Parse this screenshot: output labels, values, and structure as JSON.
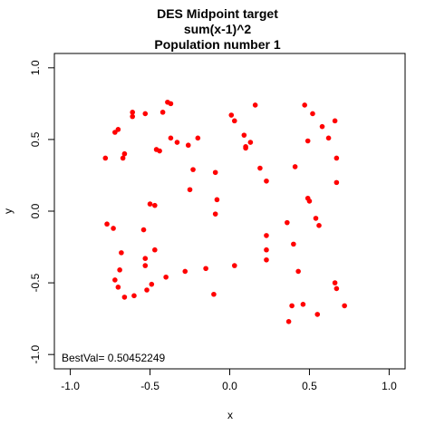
{
  "chart_data": {
    "type": "scatter",
    "title_lines": [
      "DES Midpoint target",
      "sum(x-1)^2",
      "Population number 1"
    ],
    "xlabel": "x",
    "ylabel": "y",
    "xlim": [
      -1.1,
      1.1
    ],
    "ylim": [
      -1.1,
      1.1
    ],
    "xticks": [
      -1.0,
      -0.5,
      0.0,
      0.5,
      1.0
    ],
    "yticks": [
      -1.0,
      -0.5,
      0.0,
      0.5,
      1.0
    ],
    "xtick_labels": [
      "-1.0",
      "-0.5",
      "0.0",
      "0.5",
      "1.0"
    ],
    "ytick_labels": [
      "-1.0",
      "-0.5",
      "0.0",
      "0.5",
      "1.0"
    ],
    "grid": false,
    "annotation": "BestVal= 0.50452249",
    "annotation_color": "#0000ff",
    "point_color": "#ff0000",
    "points": [
      [
        -0.78,
        0.37
      ],
      [
        -0.72,
        0.55
      ],
      [
        -0.7,
        0.57
      ],
      [
        -0.67,
        0.37
      ],
      [
        -0.66,
        0.4
      ],
      [
        -0.61,
        0.66
      ],
      [
        -0.61,
        0.69
      ],
      [
        -0.53,
        0.68
      ],
      [
        -0.46,
        0.43
      ],
      [
        -0.44,
        0.42
      ],
      [
        -0.42,
        0.69
      ],
      [
        -0.39,
        0.76
      ],
      [
        -0.37,
        0.75
      ],
      [
        -0.37,
        0.51
      ],
      [
        -0.33,
        0.48
      ],
      [
        -0.26,
        0.46
      ],
      [
        -0.2,
        0.51
      ],
      [
        -0.23,
        0.29
      ],
      [
        -0.25,
        0.15
      ],
      [
        -0.09,
        0.27
      ],
      [
        -0.08,
        0.08
      ],
      [
        -0.09,
        -0.02
      ],
      [
        0.01,
        0.67
      ],
      [
        0.03,
        0.63
      ],
      [
        0.09,
        0.53
      ],
      [
        0.1,
        0.45
      ],
      [
        0.1,
        0.44
      ],
      [
        0.13,
        0.48
      ],
      [
        0.16,
        0.74
      ],
      [
        0.19,
        0.3
      ],
      [
        0.23,
        0.21
      ],
      [
        -0.77,
        -0.09
      ],
      [
        -0.73,
        -0.12
      ],
      [
        -0.68,
        -0.29
      ],
      [
        -0.69,
        -0.41
      ],
      [
        -0.72,
        -0.48
      ],
      [
        -0.7,
        -0.53
      ],
      [
        -0.66,
        -0.6
      ],
      [
        -0.6,
        -0.59
      ],
      [
        -0.53,
        -0.33
      ],
      [
        -0.53,
        -0.38
      ],
      [
        -0.54,
        -0.13
      ],
      [
        -0.5,
        0.05
      ],
      [
        -0.47,
        0.04
      ],
      [
        -0.47,
        -0.27
      ],
      [
        -0.52,
        -0.55
      ],
      [
        -0.49,
        -0.51
      ],
      [
        -0.4,
        -0.46
      ],
      [
        -0.28,
        -0.42
      ],
      [
        -0.15,
        -0.4
      ],
      [
        -0.1,
        -0.58
      ],
      [
        0.03,
        -0.38
      ],
      [
        0.23,
        -0.17
      ],
      [
        0.23,
        -0.27
      ],
      [
        0.23,
        -0.34
      ],
      [
        0.36,
        -0.08
      ],
      [
        0.4,
        -0.23
      ],
      [
        0.43,
        -0.42
      ],
      [
        0.41,
        0.31
      ],
      [
        0.47,
        0.74
      ],
      [
        0.49,
        0.49
      ],
      [
        0.49,
        0.09
      ],
      [
        0.5,
        0.07
      ],
      [
        0.52,
        0.68
      ],
      [
        0.54,
        -0.05
      ],
      [
        0.56,
        -0.1
      ],
      [
        0.58,
        0.59
      ],
      [
        0.62,
        0.51
      ],
      [
        0.66,
        0.63
      ],
      [
        0.67,
        0.37
      ],
      [
        0.67,
        0.2
      ],
      [
        0.66,
        -0.5
      ],
      [
        0.67,
        -0.54
      ],
      [
        0.72,
        -0.66
      ],
      [
        0.39,
        -0.66
      ],
      [
        0.46,
        -0.65
      ],
      [
        0.37,
        -0.77
      ],
      [
        0.55,
        -0.72
      ]
    ]
  }
}
